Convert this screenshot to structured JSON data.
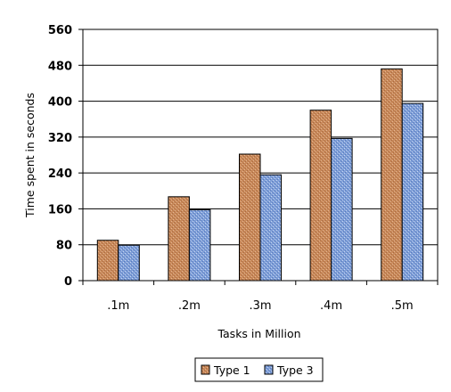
{
  "chart_data": {
    "type": "bar",
    "categories": [
      ".1m",
      ".2m",
      ".3m",
      ".4m",
      ".5m"
    ],
    "series": [
      {
        "name": "Type 1",
        "values": [
          90,
          187,
          282,
          380,
          472
        ],
        "color": "#c8895a"
      },
      {
        "name": "Type 3",
        "values": [
          79,
          158,
          236,
          317,
          395
        ],
        "color": "#7f9fd8"
      }
    ],
    "xlabel": "Tasks in Million",
    "ylabel": "Time spent in seconds",
    "ylim": [
      0,
      560
    ],
    "yticks": [
      0,
      80,
      160,
      240,
      320,
      400,
      480,
      560
    ],
    "grid": true,
    "legend": "bottom"
  }
}
